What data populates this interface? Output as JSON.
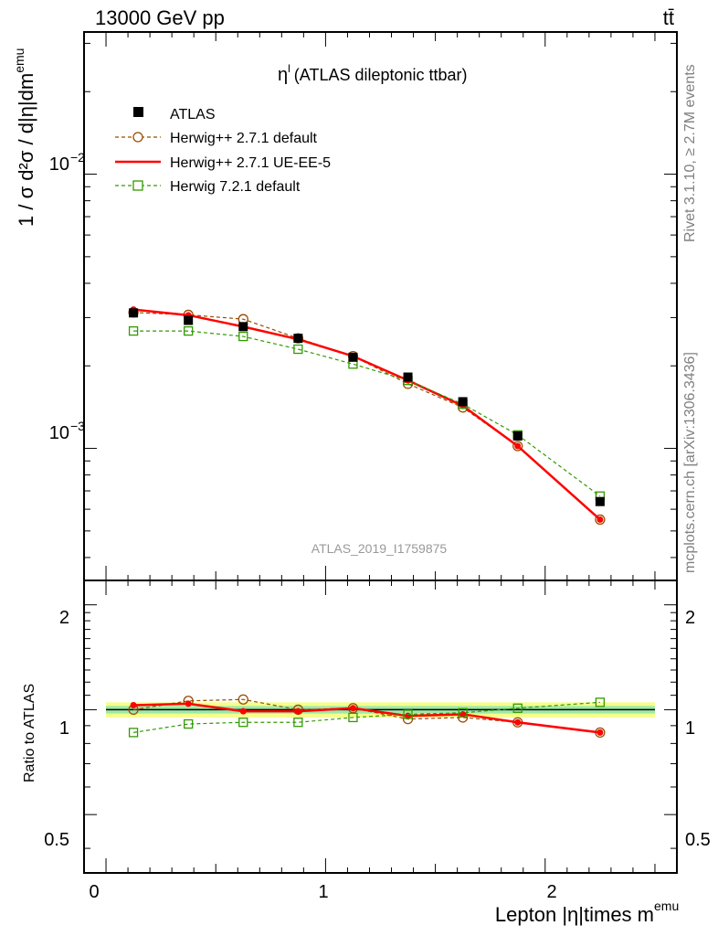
{
  "header": {
    "left": "13000 GeV pp",
    "right": "tt̄"
  },
  "plot_title": "η",
  "plot_title_sup": "l",
  "plot_title_rest": "(ATLAS dileptonic ttbar)",
  "watermark": "ATLAS_2019_I1759875",
  "side_labels": {
    "rivet": "Rivet 3.1.10, ≥ 2.7M events",
    "mcplots": "mcplots.cern.ch [arXiv:1306.3436]"
  },
  "axes": {
    "ylabel_main": "1 / σ d²σ / d|η|dm",
    "ylabel_main_sup": "emu",
    "ylabel_ratio": "Ratio to ATLAS",
    "xlabel": "Lepton |η|times m",
    "xlabel_sup": "emu",
    "main_ticks": [
      "10",
      "10"
    ],
    "main_tick_exps": [
      "−2",
      "−3"
    ],
    "ratio_ticks": [
      "2",
      "1",
      "0.5"
    ],
    "x_ticks": [
      "0",
      "1",
      "2"
    ]
  },
  "legend": [
    {
      "label": "ATLAS",
      "color": "#000000",
      "style": "data"
    },
    {
      "label": "Herwig++ 2.7.1 default",
      "color": "#994c00",
      "style": "circle-dashed"
    },
    {
      "label": "Herwig++ 2.7.1 UE-EE-5",
      "color": "#ff0000",
      "style": "solid"
    },
    {
      "label": "Herwig 7.2.1 default",
      "color": "#339900",
      "style": "square-dashed"
    }
  ],
  "chart_data": {
    "type": "line",
    "x_bins": [
      [
        0.0,
        0.25
      ],
      [
        0.25,
        0.5
      ],
      [
        0.5,
        0.75
      ],
      [
        0.75,
        1.0
      ],
      [
        1.0,
        1.25
      ],
      [
        1.25,
        1.5
      ],
      [
        1.5,
        1.75
      ],
      [
        1.75,
        2.0
      ],
      [
        2.0,
        2.5
      ]
    ],
    "x": [
      0.125,
      0.375,
      0.625,
      0.875,
      1.125,
      1.375,
      1.625,
      1.875,
      2.25
    ],
    "xlim": [
      -0.1,
      2.6
    ],
    "ylim_main": [
      0.00033,
      0.033
    ],
    "y_scale_main": "log",
    "ylim_ratio": [
      0.34,
      2.35
    ],
    "y_scale_ratio": "log",
    "series": [
      {
        "name": "ATLAS",
        "values": [
          0.00312,
          0.00293,
          0.00278,
          0.00252,
          0.00215,
          0.00182,
          0.00148,
          0.00111,
          0.00064
        ]
      },
      {
        "name": "Herwig++ 2.7.1 default",
        "values": [
          0.00313,
          0.00307,
          0.00296,
          0.00252,
          0.00217,
          0.00172,
          0.00141,
          0.00102,
          0.00055
        ]
      },
      {
        "name": "Herwig++ 2.7.1 UE-EE-5",
        "values": [
          0.00321,
          0.00306,
          0.00278,
          0.0025,
          0.00217,
          0.00177,
          0.00143,
          0.00102,
          0.00055
        ]
      },
      {
        "name": "Herwig 7.2.1 default",
        "values": [
          0.00268,
          0.00268,
          0.00256,
          0.0023,
          0.00203,
          0.00177,
          0.00145,
          0.00112,
          0.00067
        ]
      }
    ],
    "ratio": [
      {
        "name": "Herwig++ 2.7.1 default",
        "values": [
          1.0,
          1.06,
          1.07,
          1.0,
          1.01,
          0.94,
          0.95,
          0.92,
          0.86
        ]
      },
      {
        "name": "Herwig++ 2.7.1 UE-EE-5",
        "values": [
          1.03,
          1.04,
          0.99,
          0.99,
          1.01,
          0.96,
          0.97,
          0.92,
          0.86
        ]
      },
      {
        "name": "Herwig 7.2.1 default",
        "values": [
          0.86,
          0.91,
          0.92,
          0.92,
          0.95,
          0.97,
          0.98,
          1.01,
          1.05
        ]
      }
    ],
    "band_ratio": {
      "inner": [
        0.975,
        1.025
      ],
      "outer": [
        0.95,
        1.05
      ]
    },
    "grid": false,
    "legend_position": "top-left"
  }
}
